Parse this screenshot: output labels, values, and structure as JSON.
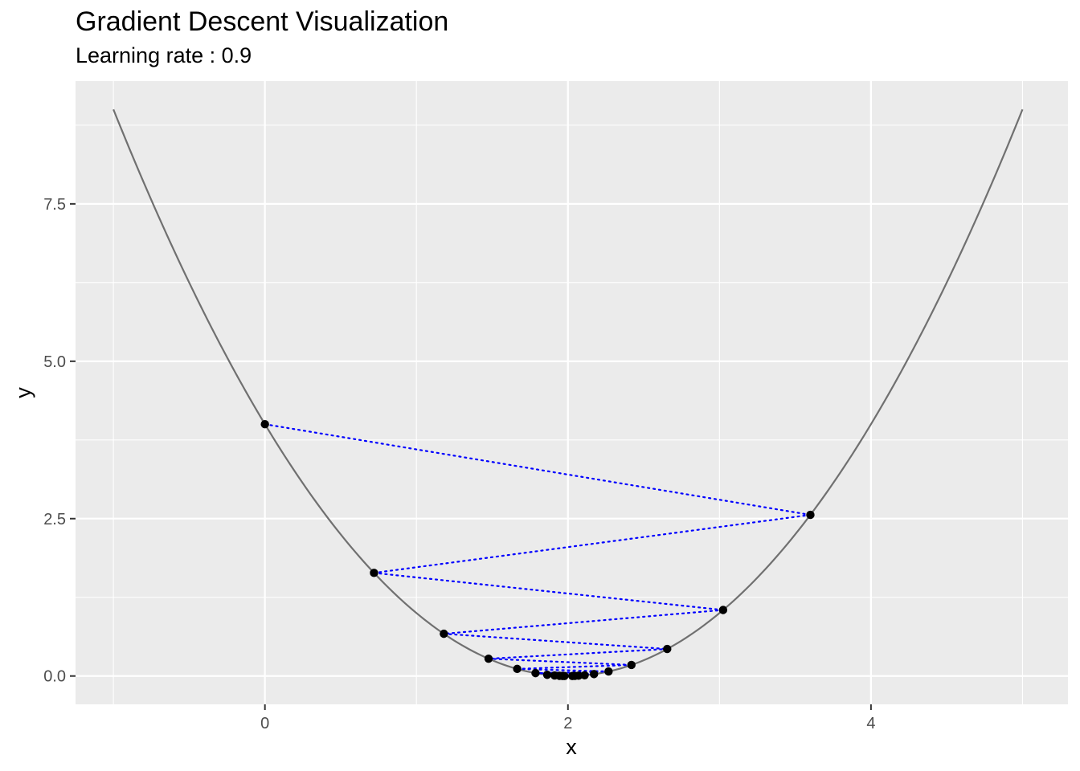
{
  "title": "Gradient Descent Visualization",
  "subtitle": "Learning rate : 0.9",
  "chart_data": {
    "type": "scatter",
    "title": "Gradient Descent Visualization",
    "subtitle": "Learning rate : 0.9",
    "xlabel": "x",
    "ylabel": "y",
    "xlim": [
      -1.25,
      5.3
    ],
    "ylim": [
      -0.45,
      9.45
    ],
    "x_ticks": [
      0,
      2,
      4
    ],
    "x_tick_labels": [
      "0",
      "2",
      "4"
    ],
    "y_ticks": [
      0.0,
      2.5,
      5.0,
      7.5
    ],
    "y_tick_labels": [
      "0.0",
      "2.5",
      "5.0",
      "7.5"
    ],
    "grid": true,
    "panel_background": "#ebebeb",
    "grid_color": "#ffffff",
    "curve": {
      "function": "y = (x - 2)^2",
      "x_range": [
        -1,
        5
      ],
      "color": "#707070"
    },
    "path": {
      "color": "#0000ff",
      "line_style": "dotted",
      "point_color": "#000000",
      "points": [
        {
          "x": 0.0,
          "y": 4.0
        },
        {
          "x": 3.6,
          "y": 2.56
        },
        {
          "x": 0.72,
          "y": 1.638
        },
        {
          "x": 3.024,
          "y": 1.049
        },
        {
          "x": 1.181,
          "y": 0.671
        },
        {
          "x": 2.655,
          "y": 0.429
        },
        {
          "x": 1.476,
          "y": 0.275
        },
        {
          "x": 2.419,
          "y": 0.176
        },
        {
          "x": 1.665,
          "y": 0.113
        },
        {
          "x": 2.268,
          "y": 0.072
        },
        {
          "x": 1.786,
          "y": 0.046
        },
        {
          "x": 2.172,
          "y": 0.03
        },
        {
          "x": 1.863,
          "y": 0.019
        },
        {
          "x": 2.11,
          "y": 0.012
        },
        {
          "x": 1.912,
          "y": 0.008
        },
        {
          "x": 2.07,
          "y": 0.005
        },
        {
          "x": 1.944,
          "y": 0.003
        },
        {
          "x": 2.045,
          "y": 0.002
        },
        {
          "x": 1.964,
          "y": 0.001
        },
        {
          "x": 2.029,
          "y": 0.001
        },
        {
          "x": 1.977,
          "y": 0.001
        }
      ]
    }
  }
}
